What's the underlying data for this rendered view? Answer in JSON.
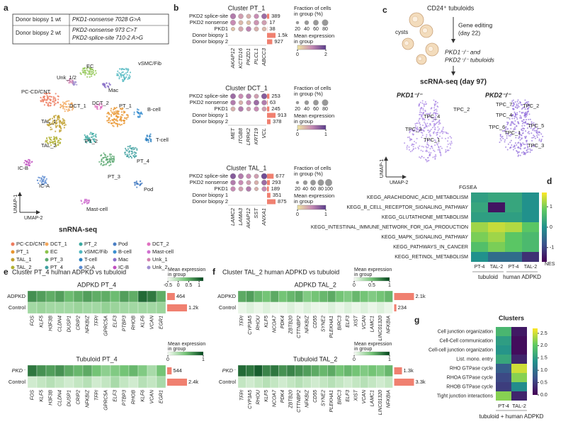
{
  "a": {
    "label": "a",
    "table": [
      [
        "Donor biopsy 1 wt",
        "PKD1-nonsense 7028 G>A"
      ],
      [
        "Donor biopsy 2 wt",
        "PKD2-nonsense 973 C>T",
        "PKD2-splice-site 710-2 A>G"
      ]
    ],
    "clusters": [
      {
        "name": "PC-CD/CNT",
        "color": "#ee7b5e"
      },
      {
        "name": "DCT_1",
        "color": "#f2a65a"
      },
      {
        "name": "PT_2",
        "color": "#3aa8a0"
      },
      {
        "name": "Pod",
        "color": "#4a7fc4"
      },
      {
        "name": "DCT_2",
        "color": "#e070c0"
      },
      {
        "name": "PT_1",
        "color": "#e8952e"
      },
      {
        "name": "EC",
        "color": "#8bc34a"
      },
      {
        "name": "vSMC/Fib",
        "color": "#50b8c0"
      },
      {
        "name": "B-cell",
        "color": "#3a8fd0"
      },
      {
        "name": "Mast-cell",
        "color": "#d070d0"
      },
      {
        "name": "TAL_1",
        "color": "#c0a030"
      },
      {
        "name": "PT_3",
        "color": "#5aa870"
      },
      {
        "name": "T-cell",
        "color": "#2a80c0"
      },
      {
        "name": "Mac",
        "color": "#8a70c8"
      },
      {
        "name": "Unk_1",
        "color": "#d080b0"
      },
      {
        "name": "TAL_2",
        "color": "#b0b030"
      },
      {
        "name": "PT_4",
        "color": "#40a0a0"
      },
      {
        "name": "IC-A",
        "color": "#5a8ad0"
      },
      {
        "name": "IC-B",
        "color": "#c050c0"
      },
      {
        "name": "Unk_2",
        "color": "#a090d0"
      }
    ],
    "umap_extra": "Unk_1/2",
    "x_label": "UMAP-2",
    "y_label": "UMAP-1",
    "caption": "snRNA-seq"
  },
  "b": {
    "label": "b",
    "fraction_label": [
      "Fraction of cells",
      "in group (%)"
    ],
    "mean_label": [
      "Mean expression",
      "in group"
    ],
    "colors": [
      "#f0e6a0",
      "#c88cb4",
      "#5a3c8c"
    ],
    "plots": [
      {
        "title": "Cluster PT_1",
        "rows": [
          "PKD2 splice-site",
          "PKD2 nonsense",
          "PKD1",
          "Donor biopsy 1",
          "Donor biopsy 2"
        ],
        "genes": [
          "AKAP12",
          "KCTD16",
          "PKZD1",
          "PLCL1",
          "ABCC3"
        ],
        "fraction": [
          [
            60,
            50,
            40,
            45,
            55
          ],
          [
            55,
            40,
            35,
            50,
            45
          ],
          [
            30,
            45,
            50,
            40,
            35
          ]
        ],
        "mean": [
          [
            1.2,
            0.8,
            0.6,
            1.0,
            1.4
          ],
          [
            1.0,
            0.5,
            0.4,
            0.9,
            0.8
          ],
          [
            0.4,
            0.7,
            1.1,
            0.6,
            0.5
          ]
        ],
        "values": [
          389,
          17,
          38,
          1500,
          927
        ],
        "value_labels": [
          "389",
          "17",
          "38",
          "1.5k",
          "927"
        ],
        "size_ticks": [
          20,
          40,
          60,
          80
        ],
        "color_ticks": [
          0,
          2
        ]
      },
      {
        "title": "Cluster DCT_1",
        "rows": [
          "PKD2 splice-site",
          "PKD2 nonsense",
          "PKD1",
          "Donor biopsy 1",
          "Donor biopsy 2"
        ],
        "genes": [
          "MET",
          "ITGB8",
          "LRRK2",
          "KRT19",
          "VCL"
        ],
        "fraction": [
          [
            55,
            45,
            50,
            40,
            60
          ],
          [
            50,
            35,
            45,
            55,
            50
          ],
          [
            40,
            50,
            35,
            45,
            40
          ]
        ],
        "mean": [
          [
            0.7,
            0.5,
            0.6,
            0.4,
            0.8
          ],
          [
            0.6,
            0.3,
            0.5,
            0.7,
            0.6
          ],
          [
            0.3,
            0.6,
            0.4,
            0.5,
            0.4
          ]
        ],
        "values": [
          253,
          63,
          245,
          913,
          378
        ],
        "value_labels": [
          "253",
          "63",
          "245",
          "913",
          "378"
        ],
        "size_ticks": [
          20,
          40,
          60,
          80
        ],
        "color_ticks": [
          0,
          1
        ]
      },
      {
        "title": "Cluster TAL_1",
        "rows": [
          "PKD2 splice-site",
          "PKD2 nonsense",
          "PKD1",
          "Donor biopsy 1",
          "Donor biopsy 2"
        ],
        "genes": [
          "LAMC2",
          "LAMA3",
          "AKAP12",
          "SST",
          "ANXA1"
        ],
        "fraction": [
          [
            60,
            55,
            45,
            40,
            65
          ],
          [
            50,
            45,
            40,
            35,
            55
          ],
          [
            45,
            40,
            50,
            30,
            45
          ]
        ],
        "mean": [
          [
            0.8,
            0.6,
            0.5,
            0.4,
            0.9
          ],
          [
            0.6,
            0.5,
            0.4,
            0.3,
            0.7
          ],
          [
            0.5,
            0.4,
            0.6,
            0.3,
            0.5
          ]
        ],
        "values": [
          677,
          293,
          189,
          351,
          875
        ],
        "value_labels": [
          "677",
          "293",
          "189",
          "351",
          "875"
        ],
        "size_ticks": [
          20,
          40,
          60,
          80,
          100
        ],
        "color_ticks": [
          0,
          1
        ]
      }
    ]
  },
  "c": {
    "label": "c",
    "source": "CD24⁺ tubuloids",
    "cysts": "cysts",
    "step1": [
      "Gene editing",
      "(day 22)"
    ],
    "product": [
      "PKD1⁻/⁻ and",
      "PKD2⁻/⁻ tubuloids"
    ],
    "step2": "scRNA-seq (day 97)",
    "umaps": [
      {
        "title": "PKD1⁻/⁻",
        "labels": [
          "TPC_2",
          "TPC_4",
          "TPC_3",
          "TPC_1"
        ]
      },
      {
        "title": "PKD2⁻/⁻",
        "labels": [
          "TPC_7",
          "TPC_2",
          "TPC_4",
          "TPC_6",
          "TPC_5",
          "TPC_1",
          "TPC_3"
        ]
      }
    ],
    "y_label": "UMAP-1",
    "x_label": "UMAP-2"
  },
  "d": {
    "label": "d",
    "method": "FGSEA",
    "rows": [
      "KEGG_ARACHIDONIC_ACID_METABOLISM",
      "KEGG_B_CELL_RECEPTOR_SIGNALING_PATHWAY",
      "KEGG_GLUTATHIONE_METABOLISM",
      "KEGG_INTESTINAL_IMMUNE_NETWORK_FOR_IGA_PRODUCTION",
      "KEGG_MAPK_SIGNALING_PATHWAY",
      "KEGG_PATHWAYS_IN_CANCER",
      "KEGG_RETINOL_METABOLISM"
    ],
    "columns": [
      "PT-4",
      "TAL-2",
      "PT-4",
      "TAL-2"
    ],
    "groups": [
      "tubuloid",
      "human ADPKD"
    ],
    "values": [
      [
        0.2,
        0.3,
        0.3,
        0.0
      ],
      [
        0.3,
        -1.5,
        0.3,
        0.0
      ],
      [
        0.2,
        0.2,
        0.2,
        0.0
      ],
      [
        1.2,
        1.4,
        1.3,
        0.8
      ],
      [
        1.0,
        1.2,
        0.8,
        0.6
      ],
      [
        0.7,
        1.0,
        0.8,
        0.6
      ],
      [
        0.0,
        -0.5,
        -0.5,
        -1.2
      ]
    ],
    "lim": [
      -1.7,
      1.7
    ],
    "ticks": [
      1,
      0,
      -1
    ],
    "colorbar_label": "NES",
    "colormap": "viridis"
  },
  "e": {
    "label": "e",
    "title": "Cluster PT_4 human ADPKD vs tubuloid",
    "legend_label": [
      "Mean expression",
      "in group"
    ],
    "genes": [
      "FOS",
      "KLF5",
      "H3F3B",
      "CLDN4",
      "DUSP1",
      "CRIP2",
      "NFKBIZ",
      "TFPI",
      "GPRC5A",
      "ELF3",
      "PTBP3",
      "RHOB",
      "KLF6",
      "VCAN",
      "EGR1"
    ],
    "top": {
      "title": "ADPKD PT_4",
      "rows": [
        "ADPKD",
        "Control"
      ],
      "values": [
        [
          0.7,
          0.6,
          0.5,
          0.6,
          0.4,
          0.5,
          0.6,
          0.5,
          0.5,
          0.4,
          0.6,
          0.5,
          0.95,
          0.85,
          0.5
        ],
        [
          0.05,
          0.1,
          0.05,
          0.05,
          0.05,
          0.1,
          0.05,
          0.05,
          0.15,
          0.1,
          0.05,
          0.05,
          0.05,
          0.05,
          0.1
        ]
      ],
      "counts": [
        464,
        1200
      ],
      "count_labels": [
        "464",
        "1.2k"
      ],
      "ticks": [
        -0.5,
        0,
        0.5,
        1
      ],
      "lim": [
        -0.5,
        1.2
      ]
    },
    "bottom": {
      "title": "Tubuloid PT_4",
      "rows": [
        "PKD⁻",
        "Control"
      ],
      "values": [
        [
          0.8,
          0.7,
          0.65,
          0.7,
          0.6,
          0.55,
          0.6,
          0.5,
          0.4,
          0.45,
          0.5,
          0.55,
          0.45,
          0.3,
          0.5
        ],
        [
          0.15,
          0.2,
          0.25,
          0.2,
          0.15,
          0.2,
          0.25,
          0.15,
          0.2,
          0.3,
          0.2,
          0.15,
          0.25,
          0.2,
          0.3
        ]
      ],
      "counts": [
        544,
        2400
      ],
      "count_labels": [
        "544",
        "2.4k"
      ],
      "ticks": [
        0,
        1
      ],
      "lim": [
        0,
        1
      ]
    }
  },
  "f": {
    "label": "f",
    "title": "Cluster TAL_2 human ADPKD vs tubuloid",
    "legend_label": [
      "Mean expression",
      "in group"
    ],
    "genes": [
      "TFPI",
      "CYP3A5",
      "RHOU",
      "KLF5",
      "NCOA7",
      "PDK4",
      "ZBTB20",
      "CTTNBP2",
      "NFKBIZ",
      "CD55",
      "SYNE2",
      "PLEKHA1",
      "BIRC3",
      "ELF3",
      "XIST",
      "VCAN",
      "LAMC1",
      "LINC01320",
      "NFKBIA"
    ],
    "top": {
      "title": "ADPKD TAL_2",
      "rows": [
        "ADPKD",
        "Control"
      ],
      "values": [
        [
          0.6,
          0.65,
          0.55,
          0.5,
          0.6,
          0.5,
          0.55,
          0.6,
          0.45,
          0.5,
          0.55,
          0.6,
          0.5,
          0.45,
          0.55,
          0.5,
          0.45,
          0.5,
          0.55
        ],
        [
          0.05,
          0.1,
          0.05,
          0.1,
          0.05,
          0.05,
          0.1,
          0.05,
          0.1,
          0.05,
          0.05,
          0.1,
          0.05,
          0.1,
          0.05,
          0.1,
          0.05,
          0.1,
          0.05
        ]
      ],
      "counts": [
        2100,
        234
      ],
      "count_labels": [
        "2.1k",
        "234"
      ],
      "ticks": [
        0,
        0.5,
        1
      ],
      "lim": [
        0,
        1
      ]
    },
    "bottom": {
      "title": "Tubuloid TAL_2",
      "rows": [
        "PKD⁻",
        "Control"
      ],
      "values": [
        [
          0.85,
          0.8,
          0.9,
          0.75,
          0.8,
          0.7,
          0.75,
          0.7,
          0.65,
          0.6,
          0.55,
          0.6,
          0.5,
          0.55,
          0.5,
          0.45,
          0.5,
          0.45,
          0.55
        ],
        [
          0.2,
          0.15,
          0.2,
          0.25,
          0.2,
          0.15,
          0.2,
          0.25,
          0.2,
          0.15,
          0.2,
          0.25,
          0.2,
          0.15,
          0.2,
          0.25,
          0.2,
          0.15,
          0.2
        ]
      ],
      "counts": [
        1300,
        3300
      ],
      "count_labels": [
        "1.3k",
        "3.3k"
      ],
      "ticks": [
        0,
        1
      ],
      "lim": [
        0,
        1
      ]
    }
  },
  "g": {
    "label": "g",
    "title": "Clusters",
    "rows": [
      "Cell junction organization",
      "Cell-Cell communication",
      "Cell-cell junction organization",
      "List. mono. entry",
      "RHO GTPase cycle",
      "RHOA GTPase cycle",
      "RHOB GTPase cycle",
      "Tight junction interactions"
    ],
    "columns": [
      "PT-4",
      "TAL-2"
    ],
    "caption": "tubuloid + human ADPKD",
    "values": [
      [
        1.8,
        0.2
      ],
      [
        1.5,
        0.1
      ],
      [
        1.4,
        0.1
      ],
      [
        1.6,
        0.3
      ],
      [
        0.8,
        2.5
      ],
      [
        0.6,
        2.2
      ],
      [
        0.5,
        1.3
      ],
      [
        2.2,
        0.3
      ]
    ],
    "lim": [
      0,
      2.7
    ],
    "ticks": [
      2.5,
      {
        "value": 2,
        "label": "2.0"
      },
      1.5,
      {
        "value": 1,
        "label": "1.0"
      },
      0.5,
      {
        "value": 0,
        "label": "0.0"
      }
    ],
    "colormap": "viridis"
  }
}
